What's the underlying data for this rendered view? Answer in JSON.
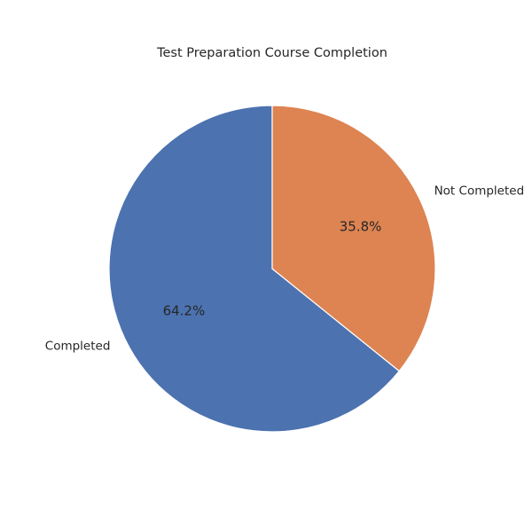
{
  "chart_data": {
    "type": "pie",
    "title": "Test Preparation Course Completion",
    "categories": [
      "Completed",
      "Not Completed"
    ],
    "values": [
      64.2,
      35.8
    ],
    "labels": [
      "64.2%",
      "35.8%"
    ],
    "colors": [
      "#4c72b0",
      "#dd8452"
    ],
    "start_angle": "top",
    "direction": "counterclockwise"
  }
}
